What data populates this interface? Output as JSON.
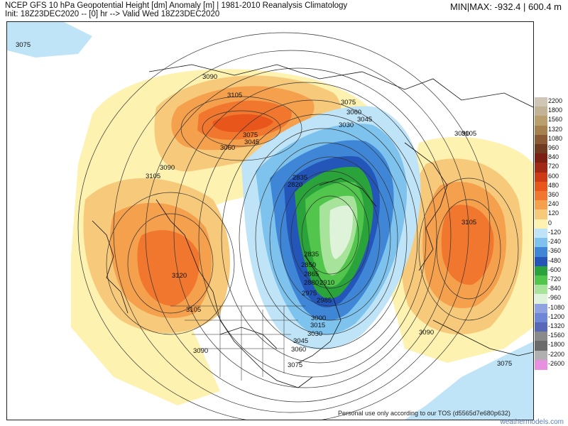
{
  "header": {
    "title_line": "NCEP GFS 10 hPa Geopotential Height [dm] Anomaly [m] | 1981-2010 Reanalysis Climatology",
    "init_line": "Init: 18Z23DEC2020 -- [0] hr --> Valid Wed 18Z23DEC2020",
    "minmax": "MIN|MAX: -932.4 | 600.4 m"
  },
  "colorbar": {
    "entries": [
      {
        "label": "2200",
        "color": "#cfc6b6"
      },
      {
        "label": "1800",
        "color": "#c2b296"
      },
      {
        "label": "1560",
        "color": "#b89f6c"
      },
      {
        "label": "1320",
        "color": "#a5814d"
      },
      {
        "label": "1080",
        "color": "#8b5a35"
      },
      {
        "label": "960",
        "color": "#6f3a1f"
      },
      {
        "label": "840",
        "color": "#7a1f12"
      },
      {
        "label": "720",
        "color": "#a02814"
      },
      {
        "label": "600",
        "color": "#cf3a16"
      },
      {
        "label": "480",
        "color": "#e8561c"
      },
      {
        "label": "360",
        "color": "#f0772d"
      },
      {
        "label": "240",
        "color": "#f5a04d"
      },
      {
        "label": "120",
        "color": "#f7c97a"
      },
      {
        "label": "0",
        "color": "#fdf2b0"
      },
      {
        "label": "-120",
        "color": "#bfe4f7"
      },
      {
        "label": "-240",
        "color": "#7ec3ee"
      },
      {
        "label": "-360",
        "color": "#3f86d6"
      },
      {
        "label": "-480",
        "color": "#2356b8"
      },
      {
        "label": "-600",
        "color": "#2aa43a"
      },
      {
        "label": "-720",
        "color": "#52c64c"
      },
      {
        "label": "-840",
        "color": "#a7e39b"
      },
      {
        "label": "-960",
        "color": "#dff3da"
      },
      {
        "label": "-1080",
        "color": "#8fa3e0"
      },
      {
        "label": "-1200",
        "color": "#6e86d6"
      },
      {
        "label": "-1320",
        "color": "#5868b8"
      },
      {
        "label": "-1560",
        "color": "#8a8a8a"
      },
      {
        "label": "-1800",
        "color": "#6b6b6b"
      },
      {
        "label": "-2200",
        "color": "#b0b0b0"
      },
      {
        "label": "-2600",
        "color": "#e88fe0"
      }
    ]
  },
  "map": {
    "contour_labels": [
      "3075",
      "3090",
      "3105",
      "3105",
      "3075",
      "3045",
      "3060",
      "3090",
      "3105",
      "3075",
      "3060",
      "3045",
      "3030",
      "2835",
      "2820",
      "2835",
      "2850",
      "2865",
      "2880",
      "2910",
      "2975",
      "2985",
      "3000",
      "3015",
      "3030",
      "3045",
      "3060",
      "3075",
      "3120",
      "3105",
      "3090",
      "3090",
      "3105",
      "3090",
      "3075"
    ]
  },
  "footer": {
    "disclaimer": "Personal use only according to our TOS (d5565d7e680p632)",
    "brand": "weathermodels.com"
  },
  "colors": {
    "ocean": "#ffffff",
    "coastline": "#111111",
    "contour": "#333333"
  }
}
